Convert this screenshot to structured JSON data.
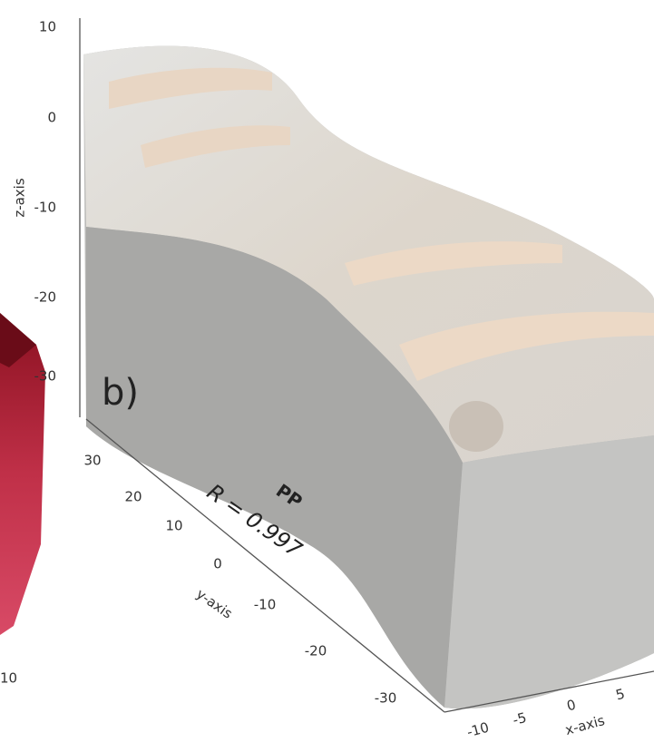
{
  "panel": {
    "label": "b)",
    "title": "PP",
    "annotation": "R = 0.997"
  },
  "axes": {
    "z": {
      "label": "z-axis",
      "ticks": [
        "10",
        "0",
        "-10",
        "-20",
        "-30"
      ]
    },
    "y": {
      "label": "y-axis",
      "ticks": [
        "30",
        "20",
        "10",
        "0",
        "-10",
        "-20",
        "-30"
      ]
    },
    "x": {
      "label": "x-axis",
      "ticks": [
        "-10",
        "-5",
        "0",
        "5"
      ]
    }
  },
  "left_panel": {
    "tick": "10"
  }
}
